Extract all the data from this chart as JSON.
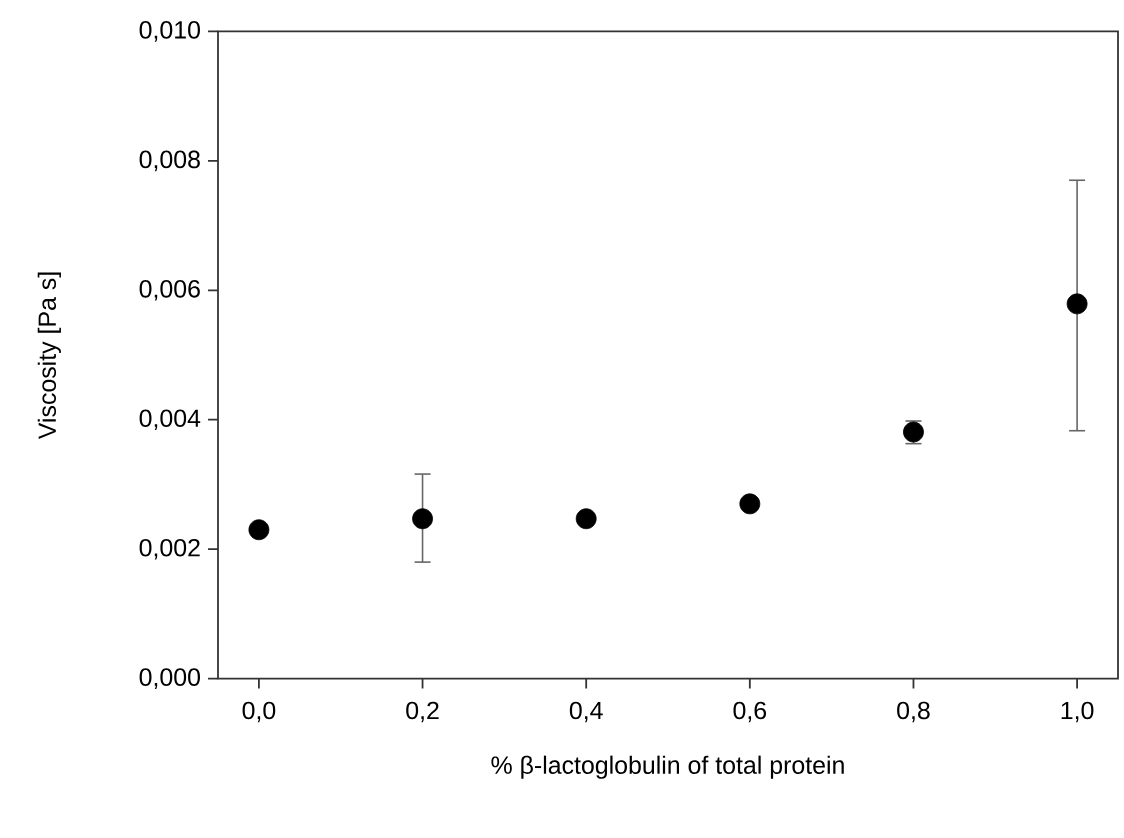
{
  "chart_data": {
    "type": "scatter",
    "xlabel": "% β-lactoglobulin of total protein",
    "ylabel": "Viscosity [Pa s]",
    "x": [
      0.0,
      0.2,
      0.4,
      0.6,
      0.8,
      1.0
    ],
    "series": [
      {
        "color": "#000000",
        "values": [
          0.0023,
          0.00247,
          0.00247,
          0.0027,
          0.00381,
          0.00579
        ],
        "errors": [
          null,
          [
            0.0018,
            0.00316
          ],
          null,
          null,
          [
            0.00363,
            0.00398
          ],
          [
            0.00383,
            0.0077
          ]
        ]
      }
    ],
    "xlim": [
      -0.05,
      1.05
    ],
    "ylim": [
      0,
      0.01
    ],
    "xticks": [
      {
        "value": 0,
        "label": "0,0"
      },
      {
        "value": 0.2,
        "label": "0,2"
      },
      {
        "value": 0.4,
        "label": "0,4"
      },
      {
        "value": 0.6,
        "label": "0,6"
      },
      {
        "value": 0.8,
        "label": "0,8"
      },
      {
        "value": 1.0,
        "label": "1,0"
      }
    ],
    "yticks": [
      {
        "value": 0,
        "label": "0,000"
      },
      {
        "value": 0.002,
        "label": "0,002"
      },
      {
        "value": 0.004,
        "label": "0,004"
      },
      {
        "value": 0.006,
        "label": "0,006"
      },
      {
        "value": 0.008,
        "label": "0,008"
      },
      {
        "value": 0.01,
        "label": "0,010"
      }
    ],
    "marker": "circle"
  }
}
